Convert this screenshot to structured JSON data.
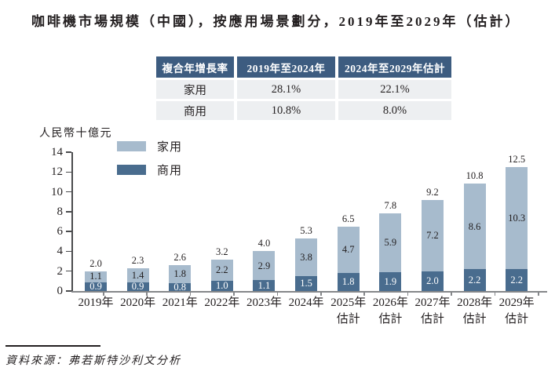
{
  "title": "咖啡機市場規模（中國），按應用場景劃分，2019年至2029年（估計）",
  "cagr_table": {
    "headers": [
      "複合年增長率",
      "2019年至2024年",
      "2024年至2029年估計"
    ],
    "rows": [
      {
        "label": "家用",
        "period1": "28.1%",
        "period2": "22.1%"
      },
      {
        "label": "商用",
        "period1": "10.8%",
        "period2": "8.0%"
      }
    ]
  },
  "chart_data": {
    "type": "bar",
    "stacked": true,
    "title": "咖啡機市場規模（中國），按應用場景劃分，2019年至2029年（估計）",
    "ylabel": "人民幣十億元",
    "ylim": [
      0,
      14
    ],
    "yticks": [
      0,
      2,
      4,
      6,
      8,
      10,
      12,
      14
    ],
    "grid": false,
    "legend_position": "top-left-inside",
    "categories": [
      {
        "year": "2019年",
        "note": ""
      },
      {
        "year": "2020年",
        "note": ""
      },
      {
        "year": "2021年",
        "note": ""
      },
      {
        "year": "2022年",
        "note": ""
      },
      {
        "year": "2023年",
        "note": ""
      },
      {
        "year": "2024年",
        "note": ""
      },
      {
        "year": "2025年",
        "note": "估計"
      },
      {
        "year": "2026年",
        "note": "估計"
      },
      {
        "year": "2027年",
        "note": "估計"
      },
      {
        "year": "2028年",
        "note": "估計"
      },
      {
        "year": "2029年",
        "note": "估計"
      }
    ],
    "series": [
      {
        "name": "家用",
        "color": "#a7bbcd",
        "values": [
          1.1,
          1.4,
          1.8,
          2.2,
          2.9,
          3.8,
          4.7,
          5.9,
          7.2,
          8.6,
          10.3
        ]
      },
      {
        "name": "商用",
        "color": "#496c8e",
        "values": [
          0.9,
          0.9,
          0.8,
          1.0,
          1.1,
          1.5,
          1.8,
          1.9,
          2.0,
          2.2,
          2.2
        ]
      }
    ],
    "totals": [
      2.0,
      2.3,
      2.6,
      3.2,
      4.0,
      5.3,
      6.5,
      7.8,
      9.2,
      10.8,
      12.5
    ]
  },
  "colors": {
    "home_bar": "#a7bbcd",
    "commercial_bar": "#496c8e",
    "table_header_bg": "#3d5c80",
    "table_row_bg": "#edeff1",
    "ink": "#231f20",
    "axis": "#4a4b4d",
    "baseline": "#85878a"
  },
  "source": "資料來源：弗若斯特沙利文分析"
}
